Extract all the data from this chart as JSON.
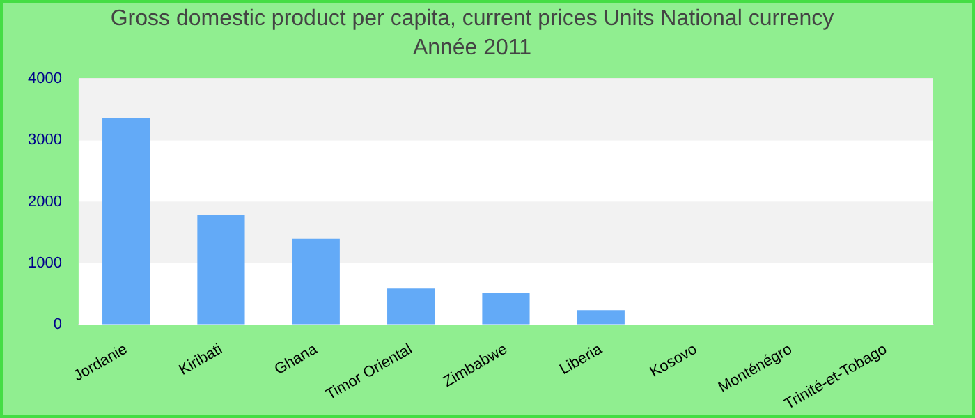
{
  "chart_data": {
    "type": "bar",
    "title": "Gross domestic product per capita, current prices Units National currency",
    "subtitle": "Année 2011",
    "categories": [
      "Jordanie",
      "Kiribati",
      "Ghana",
      "Timor Oriental",
      "Zimbabwe",
      "Liberia",
      "Kosovo",
      "Monténégro",
      "Trinité-et-Tobago"
    ],
    "values": [
      3360,
      1780,
      1400,
      590,
      520,
      240,
      null,
      null,
      null
    ],
    "color": "#63aaf7",
    "ylim": [
      0,
      4000
    ],
    "yticks": [
      0,
      1000,
      2000,
      3000,
      4000
    ],
    "grid": true,
    "legend": false
  }
}
